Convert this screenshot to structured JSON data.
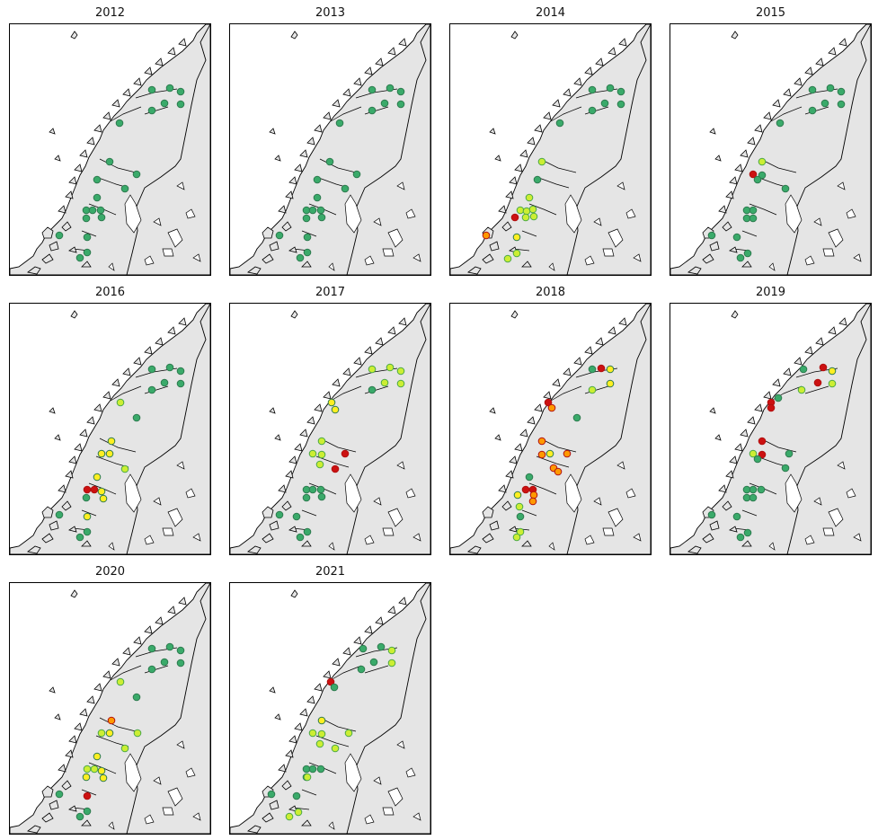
{
  "colors": {
    "sea": "#ffffff",
    "land": "#e5e5e5",
    "coast": "#000000",
    "site_good": "#3aaa6a",
    "site_moderate": "#ccee33",
    "site_poor": "#ffee22",
    "site_bad": "#ff9900",
    "site_very_bad": "#cc1111"
  },
  "panels": [
    {
      "title": "2012",
      "sites": [
        [
          "good",
          158,
          73
        ],
        [
          "good",
          178,
          71
        ],
        [
          "good",
          190,
          75
        ],
        [
          "good",
          172,
          88
        ],
        [
          "good",
          190,
          89
        ],
        [
          "good",
          158,
          96
        ],
        [
          "good",
          122,
          110
        ],
        [
          "good",
          111,
          153
        ],
        [
          "good",
          141,
          167
        ],
        [
          "good",
          97,
          173
        ],
        [
          "good",
          128,
          183
        ],
        [
          "good",
          97,
          193
        ],
        [
          "good",
          85,
          207
        ],
        [
          "good",
          92,
          207
        ],
        [
          "good",
          101,
          207
        ],
        [
          "good",
          85,
          216
        ],
        [
          "good",
          102,
          215
        ],
        [
          "good",
          55,
          235
        ],
        [
          "good",
          86,
          237
        ],
        [
          "good",
          78,
          260
        ],
        [
          "good",
          86,
          254
        ]
      ]
    },
    {
      "title": "2013",
      "sites": [
        [
          "good",
          158,
          73
        ],
        [
          "good",
          178,
          71
        ],
        [
          "good",
          190,
          75
        ],
        [
          "good",
          172,
          88
        ],
        [
          "good",
          190,
          89
        ],
        [
          "good",
          158,
          96
        ],
        [
          "good",
          122,
          110
        ],
        [
          "good",
          111,
          153
        ],
        [
          "good",
          141,
          167
        ],
        [
          "good",
          97,
          173
        ],
        [
          "good",
          128,
          183
        ],
        [
          "good",
          97,
          193
        ],
        [
          "good",
          85,
          207
        ],
        [
          "good",
          92,
          207
        ],
        [
          "good",
          101,
          207
        ],
        [
          "good",
          85,
          216
        ],
        [
          "good",
          102,
          215
        ],
        [
          "good",
          55,
          235
        ],
        [
          "good",
          86,
          237
        ],
        [
          "good",
          78,
          260
        ],
        [
          "good",
          86,
          254
        ]
      ]
    },
    {
      "title": "2014",
      "sites": [
        [
          "good",
          158,
          73
        ],
        [
          "good",
          178,
          71
        ],
        [
          "good",
          190,
          75
        ],
        [
          "good",
          172,
          88
        ],
        [
          "good",
          190,
          89
        ],
        [
          "good",
          158,
          96
        ],
        [
          "good",
          122,
          110
        ],
        [
          "moderate",
          102,
          153
        ],
        [
          "good",
          97,
          173
        ],
        [
          "moderate",
          88,
          193
        ],
        [
          "moderate",
          78,
          207
        ],
        [
          "moderate",
          85,
          208
        ],
        [
          "moderate",
          92,
          206
        ],
        [
          "moderate",
          93,
          214
        ],
        [
          "very_bad",
          72,
          215
        ],
        [
          "moderate",
          84,
          215
        ],
        [
          "bad",
          40,
          235
        ],
        [
          "poor",
          74,
          237
        ],
        [
          "moderate",
          74,
          255
        ],
        [
          "moderate",
          64,
          261
        ]
      ]
    },
    {
      "title": "2015",
      "sites": [
        [
          "good",
          158,
          73
        ],
        [
          "good",
          178,
          71
        ],
        [
          "good",
          190,
          75
        ],
        [
          "good",
          172,
          88
        ],
        [
          "good",
          190,
          89
        ],
        [
          "good",
          158,
          96
        ],
        [
          "good",
          122,
          110
        ],
        [
          "moderate",
          102,
          153
        ],
        [
          "very_bad",
          92,
          167
        ],
        [
          "good",
          102,
          168
        ],
        [
          "good",
          128,
          183
        ],
        [
          "good",
          97,
          173
        ],
        [
          "good",
          85,
          207
        ],
        [
          "good",
          92,
          207
        ],
        [
          "good",
          85,
          216
        ],
        [
          "good",
          92,
          216
        ],
        [
          "good",
          46,
          235
        ],
        [
          "good",
          74,
          237
        ],
        [
          "good",
          78,
          260
        ],
        [
          "good",
          86,
          255
        ]
      ]
    },
    {
      "title": "2016",
      "sites": [
        [
          "good",
          158,
          73
        ],
        [
          "good",
          178,
          71
        ],
        [
          "good",
          190,
          75
        ],
        [
          "good",
          172,
          88
        ],
        [
          "good",
          190,
          89
        ],
        [
          "good",
          158,
          96
        ],
        [
          "moderate",
          123,
          110
        ],
        [
          "good",
          141,
          127
        ],
        [
          "poor",
          113,
          153
        ],
        [
          "poor",
          102,
          167
        ],
        [
          "poor",
          111,
          167
        ],
        [
          "moderate",
          128,
          184
        ],
        [
          "poor",
          97,
          193
        ],
        [
          "very_bad",
          86,
          207
        ],
        [
          "very_bad",
          94,
          207
        ],
        [
          "poor",
          102,
          209
        ],
        [
          "poor",
          104,
          217
        ],
        [
          "good",
          85,
          216
        ],
        [
          "good",
          55,
          235
        ],
        [
          "poor",
          86,
          237
        ],
        [
          "good",
          78,
          260
        ],
        [
          "good",
          86,
          254
        ]
      ]
    },
    {
      "title": "2017",
      "sites": [
        [
          "moderate",
          158,
          73
        ],
        [
          "moderate",
          178,
          71
        ],
        [
          "moderate",
          190,
          75
        ],
        [
          "moderate",
          172,
          88
        ],
        [
          "moderate",
          190,
          89
        ],
        [
          "good",
          158,
          96
        ],
        [
          "poor",
          113,
          110
        ],
        [
          "poor",
          117,
          118
        ],
        [
          "moderate",
          102,
          153
        ],
        [
          "moderate",
          92,
          167
        ],
        [
          "moderate",
          102,
          168
        ],
        [
          "very_bad",
          128,
          167
        ],
        [
          "moderate",
          100,
          179
        ],
        [
          "very_bad",
          117,
          184
        ],
        [
          "good",
          85,
          207
        ],
        [
          "good",
          92,
          207
        ],
        [
          "good",
          101,
          207
        ],
        [
          "good",
          85,
          216
        ],
        [
          "good",
          102,
          215
        ],
        [
          "good",
          55,
          235
        ],
        [
          "good",
          74,
          237
        ],
        [
          "good",
          78,
          260
        ],
        [
          "good",
          86,
          254
        ]
      ]
    },
    {
      "title": "2018",
      "sites": [
        [
          "good",
          158,
          73
        ],
        [
          "very_bad",
          168,
          72
        ],
        [
          "poor",
          178,
          73
        ],
        [
          "moderate",
          158,
          96
        ],
        [
          "poor",
          178,
          89
        ],
        [
          "very_bad",
          109,
          110
        ],
        [
          "bad",
          113,
          116
        ],
        [
          "good",
          141,
          127
        ],
        [
          "bad",
          102,
          153
        ],
        [
          "bad",
          130,
          167
        ],
        [
          "bad",
          102,
          168
        ],
        [
          "poor",
          111,
          167
        ],
        [
          "bad",
          115,
          183
        ],
        [
          "bad",
          120,
          187
        ],
        [
          "good",
          88,
          193
        ],
        [
          "very_bad",
          84,
          207
        ],
        [
          "very_bad",
          92,
          207
        ],
        [
          "poor",
          75,
          213
        ],
        [
          "bad",
          93,
          213
        ],
        [
          "bad",
          92,
          220
        ],
        [
          "moderate",
          77,
          226
        ],
        [
          "good",
          78,
          237
        ],
        [
          "moderate",
          78,
          254
        ],
        [
          "moderate",
          74,
          260
        ]
      ]
    },
    {
      "title": "2019",
      "sites": [
        [
          "good",
          148,
          73
        ],
        [
          "very_bad",
          170,
          71
        ],
        [
          "poor",
          180,
          75
        ],
        [
          "very_bad",
          164,
          88
        ],
        [
          "moderate",
          180,
          89
        ],
        [
          "moderate",
          146,
          96
        ],
        [
          "very_bad",
          112,
          110
        ],
        [
          "very_bad",
          112,
          116
        ],
        [
          "good",
          120,
          105
        ],
        [
          "very_bad",
          102,
          153
        ],
        [
          "good",
          132,
          167
        ],
        [
          "moderate",
          92,
          167
        ],
        [
          "very_bad",
          102,
          168
        ],
        [
          "good",
          128,
          183
        ],
        [
          "good",
          97,
          173
        ],
        [
          "good",
          85,
          207
        ],
        [
          "good",
          92,
          207
        ],
        [
          "good",
          101,
          207
        ],
        [
          "good",
          85,
          216
        ],
        [
          "good",
          92,
          216
        ],
        [
          "good",
          46,
          235
        ],
        [
          "good",
          74,
          237
        ],
        [
          "good",
          78,
          260
        ],
        [
          "good",
          86,
          255
        ]
      ]
    },
    {
      "title": "2020",
      "sites": [
        [
          "good",
          158,
          73
        ],
        [
          "good",
          178,
          71
        ],
        [
          "good",
          190,
          75
        ],
        [
          "good",
          172,
          88
        ],
        [
          "good",
          190,
          89
        ],
        [
          "good",
          158,
          96
        ],
        [
          "moderate",
          123,
          110
        ],
        [
          "good",
          141,
          127
        ],
        [
          "bad",
          113,
          153
        ],
        [
          "moderate",
          102,
          167
        ],
        [
          "poor",
          111,
          167
        ],
        [
          "moderate",
          142,
          167
        ],
        [
          "moderate",
          128,
          184
        ],
        [
          "poor",
          97,
          193
        ],
        [
          "moderate",
          86,
          207
        ],
        [
          "moderate",
          94,
          207
        ],
        [
          "poor",
          102,
          209
        ],
        [
          "poor",
          104,
          217
        ],
        [
          "poor",
          85,
          216
        ],
        [
          "good",
          55,
          235
        ],
        [
          "very_bad",
          86,
          237
        ],
        [
          "good",
          78,
          260
        ],
        [
          "good",
          86,
          254
        ]
      ]
    },
    {
      "title": "2021",
      "sites": [
        [
          "good",
          148,
          73
        ],
        [
          "good",
          168,
          71
        ],
        [
          "moderate",
          180,
          75
        ],
        [
          "good",
          160,
          88
        ],
        [
          "moderate",
          180,
          89
        ],
        [
          "good",
          146,
          96
        ],
        [
          "very_bad",
          112,
          110
        ],
        [
          "good",
          116,
          116
        ],
        [
          "poor",
          102,
          153
        ],
        [
          "moderate",
          92,
          167
        ],
        [
          "moderate",
          102,
          168
        ],
        [
          "moderate",
          132,
          167
        ],
        [
          "moderate",
          100,
          179
        ],
        [
          "moderate",
          117,
          184
        ],
        [
          "good",
          85,
          207
        ],
        [
          "good",
          92,
          207
        ],
        [
          "good",
          101,
          207
        ],
        [
          "good",
          85,
          216
        ],
        [
          "moderate",
          86,
          216
        ],
        [
          "good",
          46,
          235
        ],
        [
          "good",
          74,
          237
        ],
        [
          "moderate",
          66,
          260
        ],
        [
          "moderate",
          76,
          255
        ]
      ]
    }
  ]
}
